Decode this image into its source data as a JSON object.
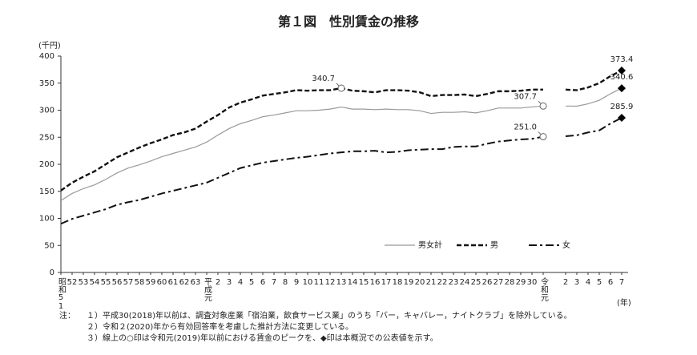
{
  "chart_data": {
    "type": "line",
    "title": "第１図　性別賃金の推移",
    "y_unit": "(千円)",
    "x_unit": "(年)",
    "categories": [
      "昭和51",
      "52",
      "53",
      "54",
      "55",
      "56",
      "57",
      "58",
      "59",
      "60",
      "61",
      "62",
      "63",
      "平成元",
      "2",
      "3",
      "4",
      "5",
      "6",
      "7",
      "8",
      "9",
      "10",
      "11",
      "12",
      "13",
      "14",
      "15",
      "16",
      "17",
      "18",
      "19",
      "20",
      "21",
      "22",
      "23",
      "24",
      "25",
      "26",
      "27",
      "28",
      "29",
      "30",
      "令和元",
      null,
      "2",
      "3",
      "4",
      "5",
      "6",
      "7"
    ],
    "ylim": [
      0,
      400
    ],
    "yticks": [
      0,
      50,
      100,
      150,
      200,
      250,
      300,
      350,
      400
    ],
    "legend": "lower right",
    "series": [
      {
        "name": "男女計",
        "color": "#999999",
        "dash": "solid",
        "values": [
          133,
          146,
          155,
          162,
          172,
          184,
          193,
          199,
          206,
          214,
          220,
          226,
          232,
          241,
          254,
          266,
          275,
          281,
          288,
          291,
          295,
          299,
          299,
          300,
          302,
          305.8,
          302,
          302,
          301,
          302,
          301,
          301,
          299,
          294,
          296,
          296,
          297,
          295,
          299,
          304,
          304,
          304,
          306,
          307.7,
          null,
          307.7,
          307.4,
          311.8,
          318.3,
          330.4,
          340.6
        ],
        "value_labels": [
          null,
          null,
          null,
          null,
          null,
          null,
          null,
          null,
          null,
          null,
          null,
          null,
          null,
          null,
          null,
          null,
          null,
          null,
          null,
          null,
          null,
          null,
          null,
          null,
          null,
          null,
          null,
          null,
          null,
          null,
          null,
          null,
          null,
          null,
          null,
          null,
          null,
          null,
          null,
          null,
          null,
          null,
          null,
          "307.7",
          null,
          null,
          null,
          null,
          null,
          null,
          "340.6"
        ]
      },
      {
        "name": "男",
        "color": "#111111",
        "dash": "dashed",
        "values": [
          151.5,
          166,
          177,
          187,
          200,
          213,
          222,
          231,
          239,
          246,
          254,
          259,
          266,
          279,
          291,
          305,
          314,
          320,
          327,
          330,
          333,
          337,
          336,
          337,
          337,
          340.7,
          336,
          335,
          333,
          337,
          337,
          336,
          333,
          326,
          328,
          328,
          329,
          326,
          330,
          335,
          335,
          336,
          338,
          338,
          null,
          338,
          337,
          342,
          350,
          363,
          373.4
        ],
        "value_labels": [
          null,
          null,
          null,
          null,
          null,
          null,
          null,
          null,
          null,
          null,
          null,
          null,
          null,
          null,
          null,
          null,
          null,
          null,
          null,
          null,
          null,
          null,
          null,
          null,
          null,
          "340.7",
          null,
          null,
          null,
          null,
          null,
          null,
          null,
          null,
          null,
          null,
          null,
          null,
          null,
          null,
          null,
          null,
          null,
          null,
          null,
          null,
          null,
          null,
          null,
          null,
          "373.4"
        ]
      },
      {
        "name": "女",
        "color": "#111111",
        "dash": "dashdot",
        "values": [
          90,
          99,
          105,
          111,
          117,
          125,
          130,
          134,
          140,
          146,
          151,
          156,
          161,
          166,
          175,
          184,
          193,
          198,
          203,
          206,
          209,
          212,
          214,
          217,
          220,
          222,
          224,
          224,
          225,
          222,
          223,
          226,
          227,
          228,
          228,
          232,
          233,
          233,
          238,
          242,
          244,
          246,
          247,
          251.0,
          null,
          251.8,
          253.6,
          258.9,
          262.6,
          275.3,
          285.9
        ],
        "value_labels": [
          null,
          null,
          null,
          null,
          null,
          null,
          null,
          null,
          null,
          null,
          null,
          null,
          null,
          null,
          null,
          null,
          null,
          null,
          null,
          null,
          null,
          null,
          null,
          null,
          null,
          null,
          null,
          null,
          null,
          null,
          null,
          null,
          null,
          null,
          null,
          null,
          null,
          null,
          null,
          null,
          null,
          null,
          null,
          "251.0",
          null,
          null,
          null,
          null,
          null,
          null,
          "285.9"
        ]
      }
    ]
  },
  "notes": {
    "label": "注：",
    "items": [
      "１）平成30(2018)年以前は、調査対象産業「宿泊業，飲食サービス業」のうち「バー，キャバレー，ナイトクラブ」を除外している。",
      "２）令和２(2020)年から有効回答率を考慮した推計方法に変更している。",
      "３）線上の○印は令和元(2019)年以前における賃金のピークを、◆印は本概況での公表値を示す。"
    ]
  }
}
